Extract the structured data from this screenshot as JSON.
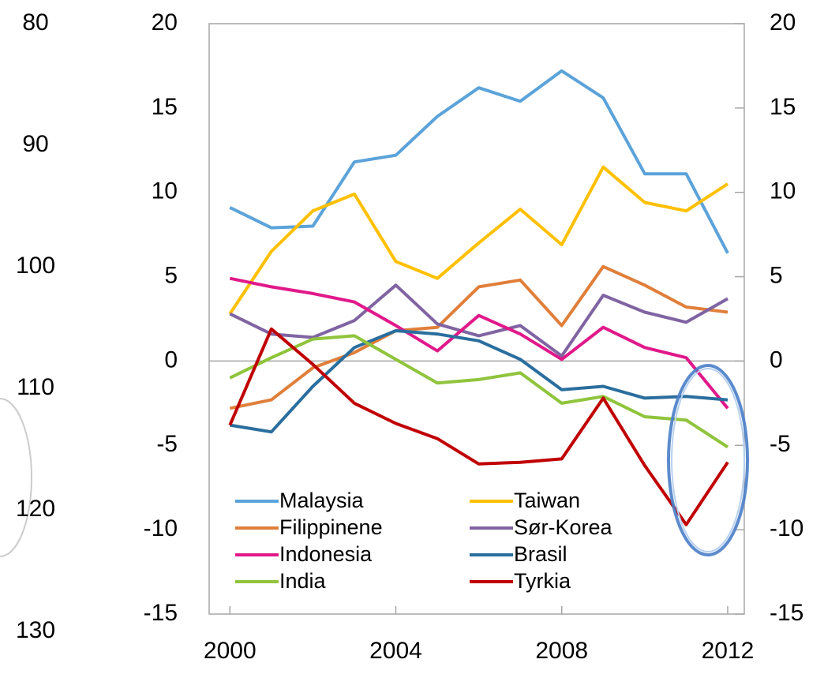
{
  "chart_data": {
    "type": "line",
    "x": [
      2000,
      2001,
      2002,
      2003,
      2004,
      2005,
      2006,
      2007,
      2008,
      2009,
      2010,
      2011,
      2012
    ],
    "xlim": [
      1999.5,
      2012.4
    ],
    "xticks": [
      2000,
      2004,
      2008,
      2012
    ],
    "ylim": [
      -15,
      20
    ],
    "yticks": [
      -15,
      -10,
      -5,
      0,
      5,
      10,
      15,
      20
    ],
    "y2lim": [
      -15,
      20
    ],
    "y2ticks": [
      -15,
      -10,
      -5,
      0,
      5,
      10,
      15,
      20
    ],
    "y3lim": [
      80,
      130
    ],
    "y3_inverted": true,
    "y3ticks": [
      80,
      90,
      100,
      110,
      120,
      130
    ],
    "legend": "lower left",
    "series": [
      {
        "name": "Malaysia",
        "color": "#5ba3d9",
        "values": [
          9.1,
          7.9,
          8.0,
          11.8,
          12.2,
          14.5,
          16.2,
          15.4,
          17.2,
          15.6,
          11.1,
          11.1,
          6.4
        ]
      },
      {
        "name": "Taiwan",
        "color": "#ffc000",
        "values": [
          2.8,
          6.5,
          8.9,
          9.9,
          5.9,
          4.9,
          7.0,
          9.0,
          6.9,
          11.5,
          9.4,
          8.9,
          10.5
        ]
      },
      {
        "name": "Filippinene",
        "color": "#e07f3a",
        "values": [
          -2.8,
          -2.3,
          -0.4,
          0.5,
          1.8,
          2.0,
          4.4,
          4.8,
          2.1,
          5.6,
          4.5,
          3.2,
          2.9
        ]
      },
      {
        "name": "Sør-Korea",
        "color": "#8064a2",
        "values": [
          2.8,
          1.6,
          1.4,
          2.4,
          4.5,
          2.2,
          1.5,
          2.1,
          0.3,
          3.9,
          2.9,
          2.3,
          3.7
        ]
      },
      {
        "name": "Indonesia",
        "color": "#e0198a",
        "values": [
          4.9,
          4.4,
          4.0,
          3.5,
          2.1,
          0.6,
          2.7,
          1.6,
          0.1,
          2.0,
          0.8,
          0.2,
          -2.8
        ]
      },
      {
        "name": "Brasil",
        "color": "#2a6e9e",
        "values": [
          -3.8,
          -4.2,
          -1.5,
          0.8,
          1.8,
          1.6,
          1.2,
          0.1,
          -1.7,
          -1.5,
          -2.2,
          -2.1,
          -2.3
        ]
      },
      {
        "name": "India",
        "color": "#8fc43c",
        "values": [
          -1.0,
          0.2,
          1.3,
          1.5,
          0.1,
          -1.3,
          -1.1,
          -0.7,
          -2.5,
          -2.1,
          -3.3,
          -3.5,
          -5.1
        ]
      },
      {
        "name": "Tyrkia",
        "color": "#c00000",
        "values": [
          -3.8,
          1.9,
          -0.2,
          -2.5,
          -3.7,
          -4.6,
          -6.1,
          -6.0,
          -5.8,
          -2.2,
          -6.2,
          -9.7,
          -6.0
        ]
      }
    ]
  }
}
